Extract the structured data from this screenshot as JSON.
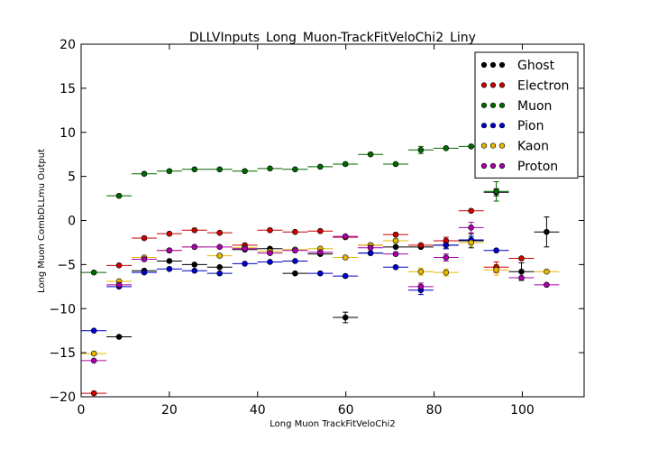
{
  "chart_data": {
    "type": "scatter",
    "title": "DLLVInputs_Long_Muon-TrackFitVeloChi2_Liny",
    "xlabel": "Long Muon TrackFitVeloChi2",
    "ylabel": "Long Muon CombDLLmu Output",
    "xlim": [
      0,
      114
    ],
    "ylim": [
      -20,
      20
    ],
    "xticks": [
      0,
      20,
      40,
      60,
      80,
      100
    ],
    "yticks": [
      -20,
      -15,
      -10,
      -5,
      0,
      5,
      10,
      15,
      20
    ],
    "grid": false,
    "legend_position": "top-right",
    "error_bars": true,
    "x_bin_half_width": 2.85,
    "series": [
      {
        "name": "Ghost",
        "color": "#000000",
        "points": [
          {
            "x": 8.6,
            "y": -13.2,
            "yerr": 0.2
          },
          {
            "x": 14.3,
            "y": -5.7,
            "yerr": 0.2
          },
          {
            "x": 20.0,
            "y": -4.6,
            "yerr": 0.2
          },
          {
            "x": 25.7,
            "y": -5.0,
            "yerr": 0.2
          },
          {
            "x": 31.4,
            "y": -5.3,
            "yerr": 0.2
          },
          {
            "x": 37.1,
            "y": -3.3,
            "yerr": 0.2
          },
          {
            "x": 42.8,
            "y": -3.2,
            "yerr": 0.2
          },
          {
            "x": 48.5,
            "y": -6.0,
            "yerr": 0.2
          },
          {
            "x": 54.2,
            "y": -3.8,
            "yerr": 0.2
          },
          {
            "x": 59.9,
            "y": -11.0,
            "yerr": 0.6
          },
          {
            "x": 65.6,
            "y": -3.7,
            "yerr": 0.2
          },
          {
            "x": 71.3,
            "y": -3.0,
            "yerr": 0.3
          },
          {
            "x": 77.0,
            "y": -3.0,
            "yerr": 0.3
          },
          {
            "x": 82.7,
            "y": -2.8,
            "yerr": 0.4
          },
          {
            "x": 88.4,
            "y": -2.3,
            "yerr": 0.8
          },
          {
            "x": 94.1,
            "y": 3.2,
            "yerr": 0.4
          },
          {
            "x": 99.8,
            "y": -5.8,
            "yerr": 1.0
          },
          {
            "x": 105.5,
            "y": -1.3,
            "yerr": 1.7
          }
        ]
      },
      {
        "name": "Electron",
        "color": "#cc0000",
        "points": [
          {
            "x": 2.9,
            "y": -19.6,
            "yerr": 0.1
          },
          {
            "x": 8.6,
            "y": -5.1,
            "yerr": 0.1
          },
          {
            "x": 14.3,
            "y": -2.0,
            "yerr": 0.1
          },
          {
            "x": 20.0,
            "y": -1.5,
            "yerr": 0.1
          },
          {
            "x": 25.7,
            "y": -1.1,
            "yerr": 0.1
          },
          {
            "x": 31.4,
            "y": -1.4,
            "yerr": 0.1
          },
          {
            "x": 37.1,
            "y": -2.8,
            "yerr": 0.1
          },
          {
            "x": 42.8,
            "y": -1.1,
            "yerr": 0.1
          },
          {
            "x": 48.5,
            "y": -1.3,
            "yerr": 0.1
          },
          {
            "x": 54.2,
            "y": -1.2,
            "yerr": 0.1
          },
          {
            "x": 59.9,
            "y": -1.9,
            "yerr": 0.2
          },
          {
            "x": 65.6,
            "y": -2.8,
            "yerr": 0.2
          },
          {
            "x": 71.3,
            "y": -1.6,
            "yerr": 0.3
          },
          {
            "x": 77.0,
            "y": -2.8,
            "yerr": 0.3
          },
          {
            "x": 82.7,
            "y": -2.3,
            "yerr": 0.4
          },
          {
            "x": 88.4,
            "y": 1.1,
            "yerr": 0.3
          },
          {
            "x": 94.1,
            "y": -5.3,
            "yerr": 0.6
          },
          {
            "x": 99.8,
            "y": -4.3,
            "yerr": 0.3
          }
        ]
      },
      {
        "name": "Muon",
        "color": "#006600",
        "points": [
          {
            "x": 2.9,
            "y": -5.9,
            "yerr": 0.1
          },
          {
            "x": 8.6,
            "y": 2.8,
            "yerr": 0.1
          },
          {
            "x": 14.3,
            "y": 5.3,
            "yerr": 0.1
          },
          {
            "x": 20.0,
            "y": 5.6,
            "yerr": 0.1
          },
          {
            "x": 25.7,
            "y": 5.8,
            "yerr": 0.1
          },
          {
            "x": 31.4,
            "y": 5.8,
            "yerr": 0.1
          },
          {
            "x": 37.1,
            "y": 5.6,
            "yerr": 0.1
          },
          {
            "x": 42.8,
            "y": 5.9,
            "yerr": 0.1
          },
          {
            "x": 48.5,
            "y": 5.8,
            "yerr": 0.1
          },
          {
            "x": 54.2,
            "y": 6.1,
            "yerr": 0.1
          },
          {
            "x": 59.9,
            "y": 6.4,
            "yerr": 0.2
          },
          {
            "x": 65.6,
            "y": 7.5,
            "yerr": 0.2
          },
          {
            "x": 71.3,
            "y": 6.4,
            "yerr": 0.2
          },
          {
            "x": 77.0,
            "y": 8.0,
            "yerr": 0.4
          },
          {
            "x": 82.7,
            "y": 8.2,
            "yerr": 0.3
          },
          {
            "x": 88.4,
            "y": 8.4,
            "yerr": 0.3
          },
          {
            "x": 94.1,
            "y": 3.3,
            "yerr": 1.1
          }
        ]
      },
      {
        "name": "Pion",
        "color": "#0000cc",
        "points": [
          {
            "x": 2.9,
            "y": -12.5,
            "yerr": 0.1
          },
          {
            "x": 8.6,
            "y": -7.5,
            "yerr": 0.1
          },
          {
            "x": 14.3,
            "y": -5.9,
            "yerr": 0.1
          },
          {
            "x": 20.0,
            "y": -5.5,
            "yerr": 0.1
          },
          {
            "x": 25.7,
            "y": -5.7,
            "yerr": 0.1
          },
          {
            "x": 31.4,
            "y": -6.0,
            "yerr": 0.1
          },
          {
            "x": 37.1,
            "y": -4.9,
            "yerr": 0.1
          },
          {
            "x": 42.8,
            "y": -4.7,
            "yerr": 0.1
          },
          {
            "x": 48.5,
            "y": -4.6,
            "yerr": 0.1
          },
          {
            "x": 54.2,
            "y": -6.0,
            "yerr": 0.1
          },
          {
            "x": 59.9,
            "y": -6.3,
            "yerr": 0.2
          },
          {
            "x": 65.6,
            "y": -3.7,
            "yerr": 0.2
          },
          {
            "x": 71.3,
            "y": -5.3,
            "yerr": 0.3
          },
          {
            "x": 77.0,
            "y": -7.9,
            "yerr": 0.5
          },
          {
            "x": 82.7,
            "y": -2.8,
            "yerr": 0.4
          },
          {
            "x": 88.4,
            "y": -2.2,
            "yerr": 0.4
          },
          {
            "x": 94.1,
            "y": -3.4,
            "yerr": 0.3
          }
        ]
      },
      {
        "name": "Kaon",
        "color": "#e6b800",
        "points": [
          {
            "x": 2.9,
            "y": -15.1,
            "yerr": 0.1
          },
          {
            "x": 8.6,
            "y": -6.9,
            "yerr": 0.1
          },
          {
            "x": 14.3,
            "y": -4.2,
            "yerr": 0.1
          },
          {
            "x": 20.0,
            "y": -3.4,
            "yerr": 0.1
          },
          {
            "x": 25.7,
            "y": -3.0,
            "yerr": 0.1
          },
          {
            "x": 31.4,
            "y": -4.0,
            "yerr": 0.1
          },
          {
            "x": 37.1,
            "y": -3.1,
            "yerr": 0.1
          },
          {
            "x": 42.8,
            "y": -3.5,
            "yerr": 0.1
          },
          {
            "x": 48.5,
            "y": -3.3,
            "yerr": 0.1
          },
          {
            "x": 54.2,
            "y": -3.2,
            "yerr": 0.1
          },
          {
            "x": 59.9,
            "y": -4.2,
            "yerr": 0.2
          },
          {
            "x": 65.6,
            "y": -2.8,
            "yerr": 0.2
          },
          {
            "x": 71.3,
            "y": -2.3,
            "yerr": 0.3
          },
          {
            "x": 77.0,
            "y": -5.8,
            "yerr": 0.4
          },
          {
            "x": 82.7,
            "y": -5.9,
            "yerr": 0.4
          },
          {
            "x": 88.4,
            "y": -2.5,
            "yerr": 0.4
          },
          {
            "x": 94.1,
            "y": -5.6,
            "yerr": 0.6
          },
          {
            "x": 105.5,
            "y": -5.8,
            "yerr": 0.1
          }
        ]
      },
      {
        "name": "Proton",
        "color": "#aa00aa",
        "points": [
          {
            "x": 2.9,
            "y": -15.9,
            "yerr": 0.1
          },
          {
            "x": 8.6,
            "y": -7.3,
            "yerr": 0.1
          },
          {
            "x": 14.3,
            "y": -4.4,
            "yerr": 0.1
          },
          {
            "x": 20.0,
            "y": -3.4,
            "yerr": 0.1
          },
          {
            "x": 25.7,
            "y": -3.0,
            "yerr": 0.1
          },
          {
            "x": 31.4,
            "y": -3.0,
            "yerr": 0.1
          },
          {
            "x": 37.1,
            "y": -3.2,
            "yerr": 0.1
          },
          {
            "x": 42.8,
            "y": -3.7,
            "yerr": 0.1
          },
          {
            "x": 48.5,
            "y": -3.4,
            "yerr": 0.1
          },
          {
            "x": 54.2,
            "y": -3.6,
            "yerr": 0.1
          },
          {
            "x": 59.9,
            "y": -1.8,
            "yerr": 0.2
          },
          {
            "x": 65.6,
            "y": -3.1,
            "yerr": 0.2
          },
          {
            "x": 71.3,
            "y": -3.8,
            "yerr": 0.2
          },
          {
            "x": 77.0,
            "y": -7.5,
            "yerr": 0.4
          },
          {
            "x": 82.7,
            "y": -4.2,
            "yerr": 0.4
          },
          {
            "x": 88.4,
            "y": -0.8,
            "yerr": 0.6
          },
          {
            "x": 99.8,
            "y": -6.5,
            "yerr": 0.2
          },
          {
            "x": 105.5,
            "y": -7.3,
            "yerr": 0.1
          }
        ]
      }
    ]
  }
}
